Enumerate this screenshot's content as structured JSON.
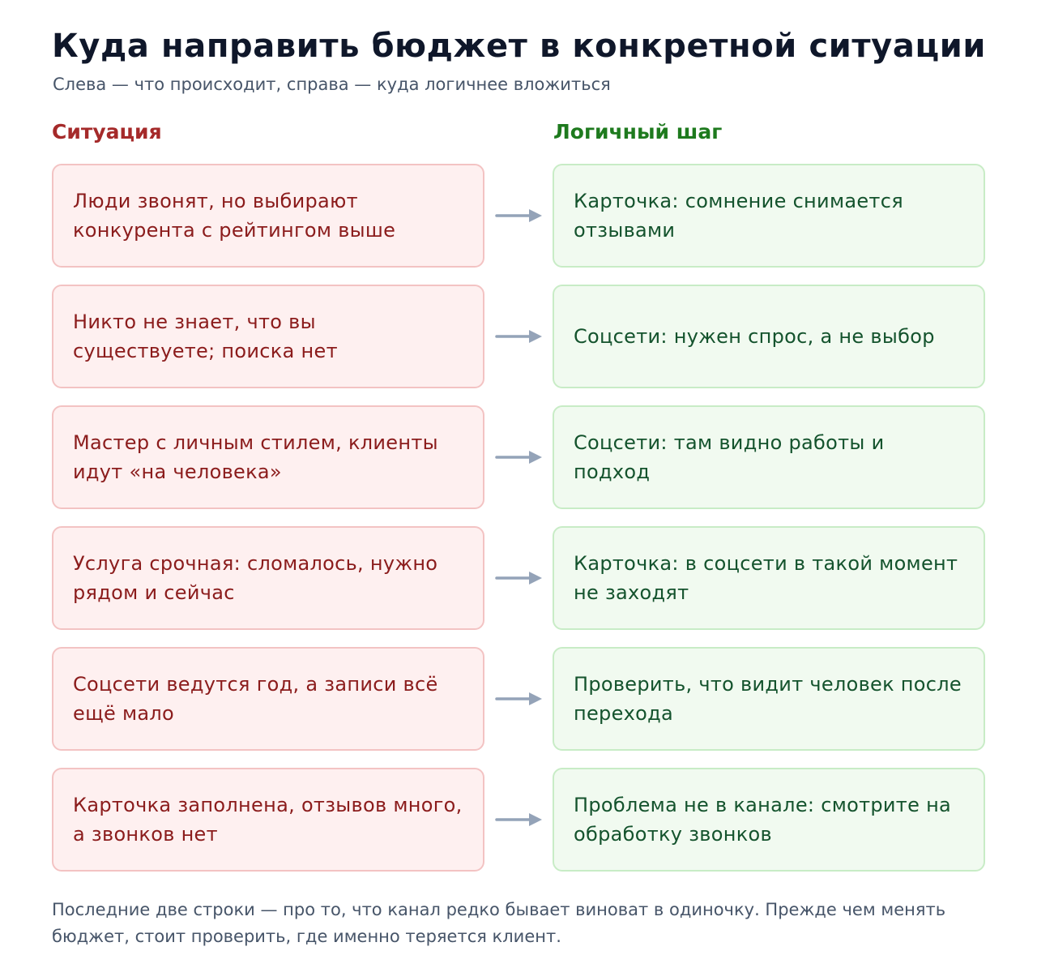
{
  "header": {
    "title": "Куда направить бюджет в конкретной ситуации",
    "subtitle": "Слева — что происходит, справа — куда логичнее вложиться"
  },
  "columns": {
    "situation": "Ситуация",
    "step": "Логичный шаг"
  },
  "rows": [
    {
      "situation": "Люди звонят, но выбирают конкурента с рейтингом выше",
      "step": "Карточка: сомнение снимается отзывами"
    },
    {
      "situation": "Никто не знает, что вы существуете; поиска нет",
      "step": "Соцсети: нужен спрос, а не выбор"
    },
    {
      "situation": "Мастер с личным стилем, клиенты идут «на человека»",
      "step": "Соцсети: там видно работы и подход"
    },
    {
      "situation": "Услуга срочная: сломалось, нужно рядом и сейчас",
      "step": "Карточка: в соцсети в такой момент не заходят"
    },
    {
      "situation": "Соцсети ведутся год, а записи всё ещё мало",
      "step": "Проверить, что видит человек после перехода"
    },
    {
      "situation": "Карточка заполнена, отзывов много, а звонков нет",
      "step": "Проблема не в канале: смотрите на обработку звонков"
    }
  ],
  "footer": {
    "note": "Последние две строки — про то, что канал редко бывает виноват в одиночку. Прежде чем менять бюджет, стоит проверить, где именно теряется клиент."
  },
  "colors": {
    "situation_text": "#8b1c1c",
    "situation_bg": "#fef0f0",
    "step_text": "#14532d",
    "step_bg": "#f1faf0",
    "arrow": "#94a3b8"
  },
  "icons": {
    "arrow": "arrow-right-icon"
  }
}
